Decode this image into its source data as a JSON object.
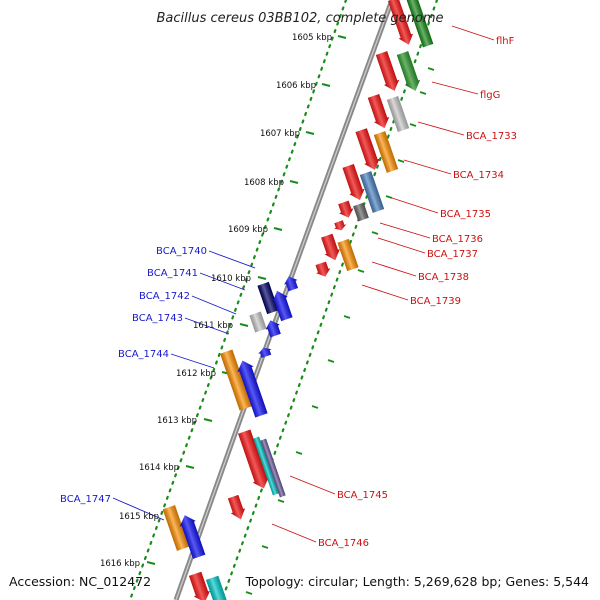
{
  "title": "Bacillus cereus 03BB102, complete genome",
  "footer": {
    "accession": "Accession: NC_012472",
    "summary": "Topology: circular; Length: 5,269,628 bp; Genes: 5,544"
  },
  "kbp_ticks": [
    "1605 kbp",
    "1606 kbp",
    "1607 kbp",
    "1608 kbp",
    "1609 kbp",
    "1610 kbp",
    "1611 kbp",
    "1612 kbp",
    "1613 kbp",
    "1614 kbp",
    "1615 kbp",
    "1616 kbp"
  ],
  "gene_labels": {
    "forward": [
      "flhF",
      "flgG",
      "BCA_1733",
      "BCA_1734",
      "BCA_1735",
      "BCA_1736",
      "BCA_1737",
      "BCA_1738",
      "BCA_1739",
      "BCA_1745",
      "BCA_1746"
    ],
    "reverse": [
      "BCA_1740",
      "BCA_1741",
      "BCA_1742",
      "BCA_1743",
      "BCA_1744",
      "BCA_1747"
    ]
  },
  "colors": {
    "red": "#ee0000",
    "green": "#1a8c1a",
    "gray": "#c8c8c8",
    "orange": "#ff9000",
    "steelblue": "#4a80c0",
    "darkgray": "#666666",
    "blue": "#0000ee",
    "navy": "#000066",
    "cyan": "#00c8c8",
    "purple": "#6a5a9a",
    "label_red": "#cc1111",
    "label_blue": "#1a1acc"
  }
}
